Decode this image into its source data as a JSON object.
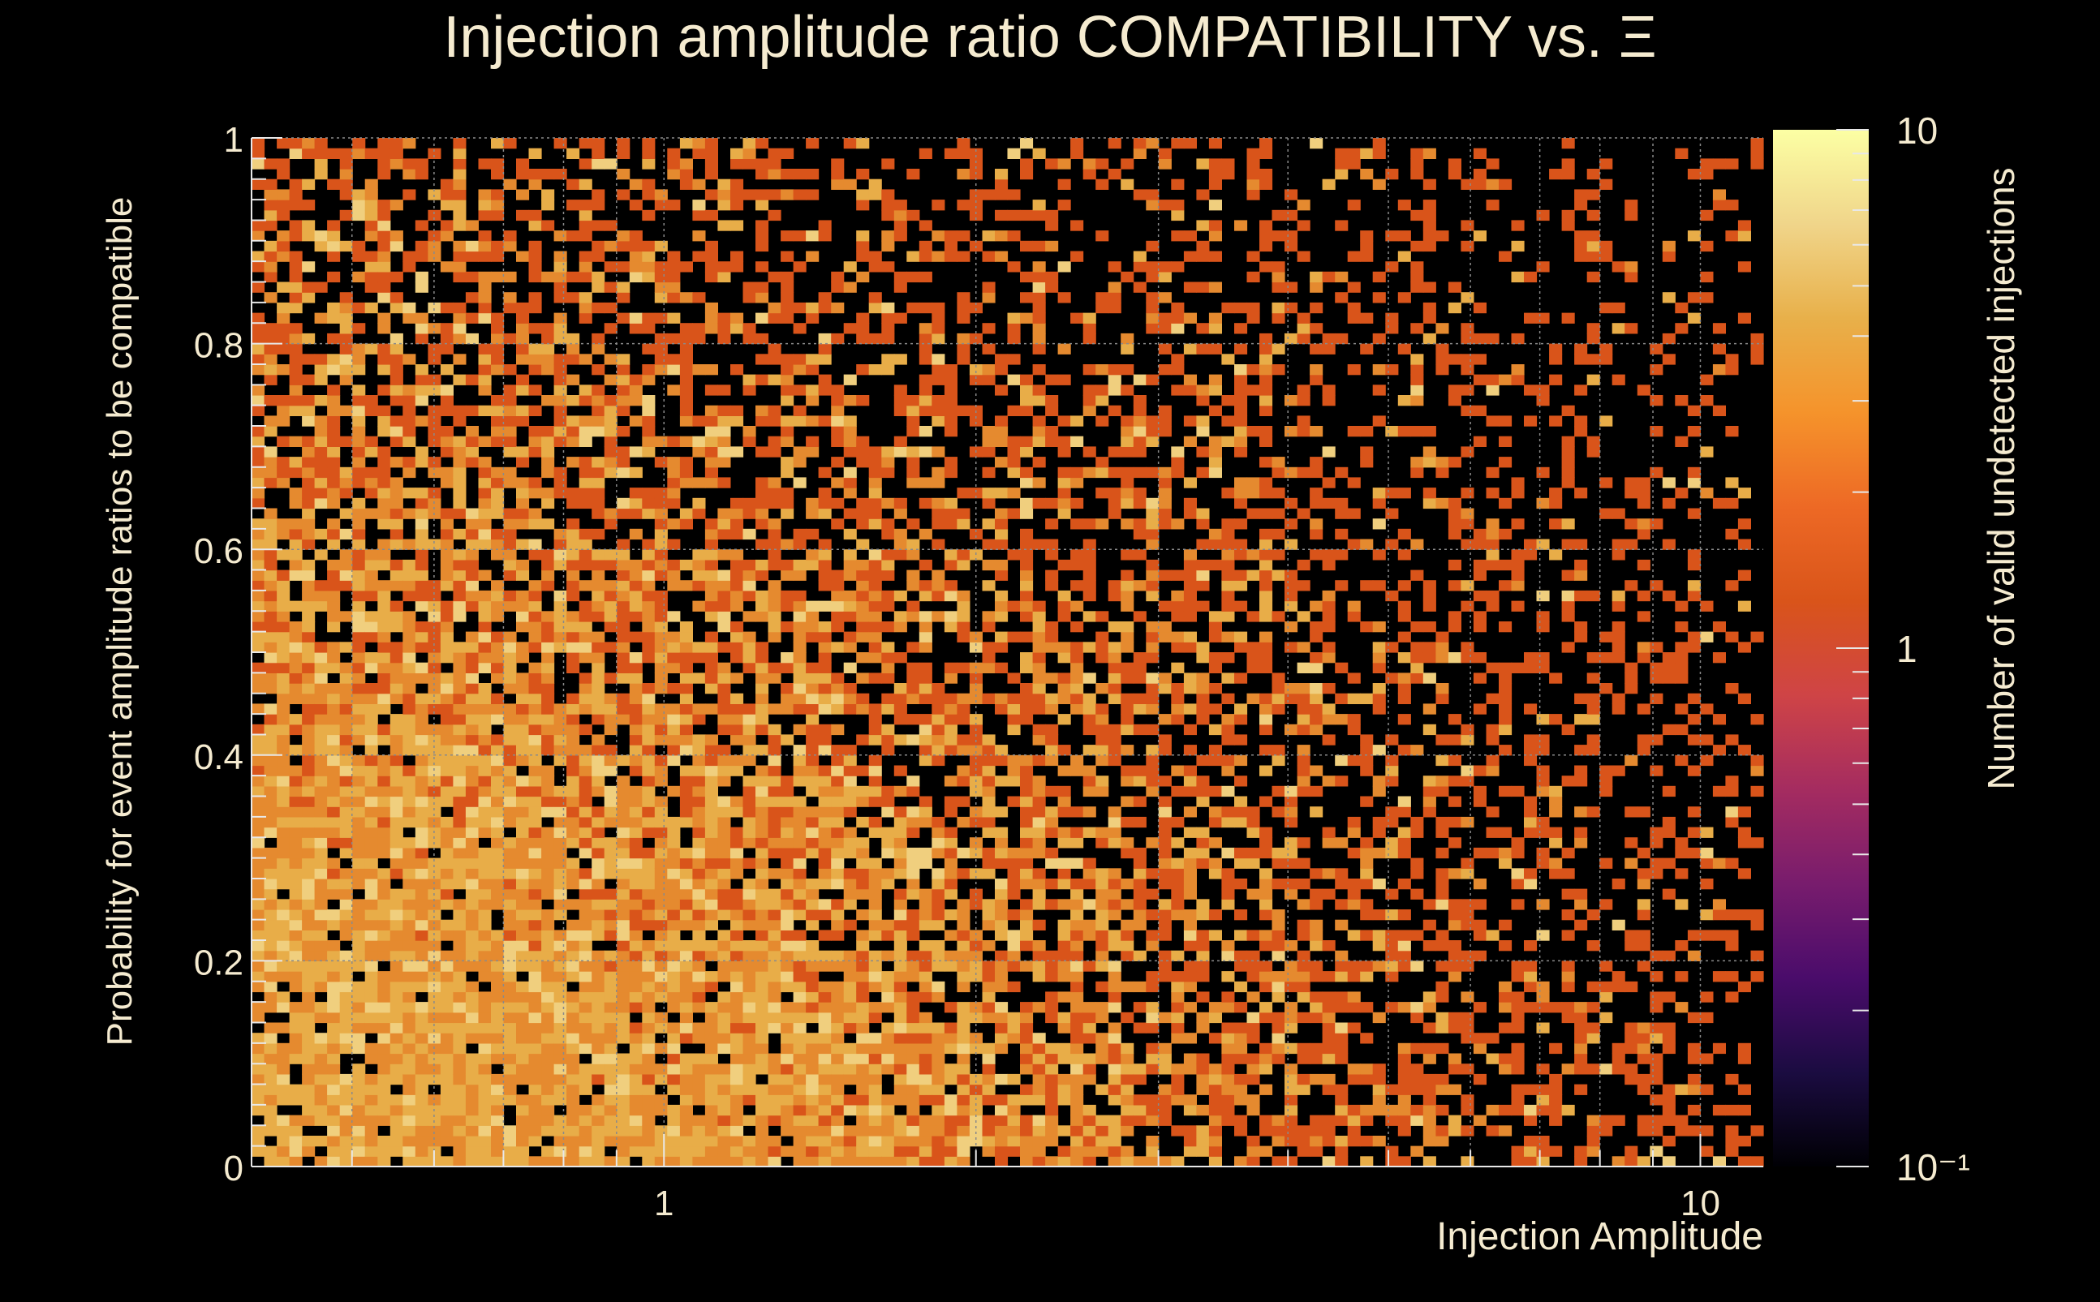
{
  "chart_data": {
    "type": "heatmap",
    "title": "Injection amplitude ratio COMPATIBILITY vs.  Ξ",
    "xlabel": "Injection Amplitude",
    "ylabel": "Probability for event amplitude ratios to be compatible",
    "colorbar_label": "Number of valid undetected injections",
    "x_scale": "log",
    "xlim": [
      0.4,
      11.5
    ],
    "ylim": [
      0,
      1
    ],
    "x_tick_labels": [
      "1",
      "10"
    ],
    "x_tick_values": [
      1,
      10
    ],
    "y_tick_labels": [
      "0",
      "0.2",
      "0.4",
      "0.6",
      "0.8",
      "1"
    ],
    "y_tick_values": [
      0,
      0.2,
      0.4,
      0.6,
      0.8,
      1
    ],
    "z_scale": "log",
    "zlim": [
      0.1,
      10
    ],
    "z_tick_labels": [
      "10⁻¹",
      "1",
      "10"
    ],
    "z_tick_values": [
      0.1,
      1,
      10
    ],
    "grid": true,
    "colormap": [
      "#000004",
      "#1b0c41",
      "#4a0c6b",
      "#781c6d",
      "#a52c60",
      "#cf4446",
      "#d9541a",
      "#ed6925",
      "#f5932b",
      "#e8b04a",
      "#f0d58a",
      "#fcffa4"
    ],
    "x_bins": 120,
    "y_bins": 100,
    "cells_description_free_note": "",
    "cells": []
  },
  "colors": {
    "background": "#000000",
    "text": "#f5ebd0",
    "grid": "#8a8a8a",
    "count1": "#d9541a",
    "count2": "#e58a2f",
    "count3": "#e8ad48",
    "count4": "#f0cf7e"
  }
}
